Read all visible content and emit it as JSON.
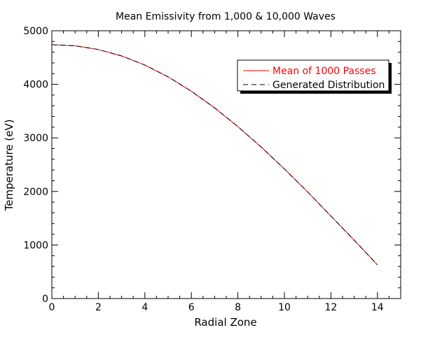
{
  "chart_data": {
    "type": "line",
    "title": "Mean Emissivity from 1,000 & 10,000 Waves",
    "xlabel": "Radial Zone",
    "ylabel": "Temperature (eV)",
    "xlim": [
      0,
      15
    ],
    "ylim": [
      0,
      5000
    ],
    "x_ticks": [
      0,
      2,
      4,
      6,
      8,
      10,
      12,
      14
    ],
    "y_ticks": [
      0,
      1000,
      2000,
      3000,
      4000,
      5000
    ],
    "legend_position": "top-right",
    "x": [
      0,
      1,
      2,
      3,
      4,
      5,
      6,
      7,
      8,
      9,
      10,
      11,
      12,
      13,
      14
    ],
    "series": [
      {
        "name": "Mean of 1000 Passes",
        "color": "#ff0000",
        "style": "solid",
        "values": [
          4740,
          4720,
          4650,
          4530,
          4360,
          4140,
          3870,
          3560,
          3210,
          2830,
          2420,
          1990,
          1540,
          1090,
          630
        ]
      },
      {
        "name": "Generated Distribution",
        "color": "#000000",
        "style": "dashed",
        "values": [
          4740,
          4720,
          4650,
          4530,
          4360,
          4140,
          3870,
          3560,
          3210,
          2830,
          2420,
          1990,
          1540,
          1090,
          630
        ]
      }
    ]
  }
}
